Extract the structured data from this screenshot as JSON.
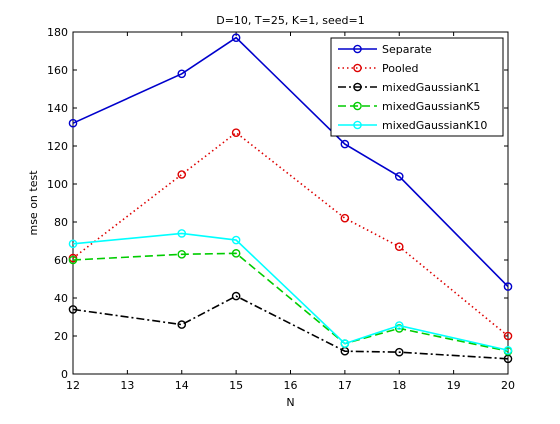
{
  "chart_data": {
    "type": "line",
    "title": "D=10, T=25, K=1, seed=1",
    "xlabel": "N",
    "ylabel": "mse on test",
    "xlim": [
      12,
      20
    ],
    "ylim": [
      0,
      180
    ],
    "xticks": [
      12,
      13,
      14,
      15,
      16,
      17,
      18,
      19,
      20
    ],
    "yticks": [
      0,
      20,
      40,
      60,
      80,
      100,
      120,
      140,
      160,
      180
    ],
    "grid": false,
    "legend_position": "top-right",
    "x": [
      12,
      14,
      15,
      17,
      18,
      20
    ],
    "series": [
      {
        "name": "Separate",
        "values": [
          132,
          158,
          177,
          121,
          104,
          46
        ],
        "color": "#0000cc",
        "line_style": "solid",
        "marker": "circle"
      },
      {
        "name": "Pooled",
        "values": [
          61,
          105,
          127,
          82,
          67,
          20
        ],
        "color": "#dd0000",
        "line_style": "dotted",
        "marker": "circle"
      },
      {
        "name": "mixedGaussianK1",
        "values": [
          34,
          26,
          41,
          12,
          11.5,
          8
        ],
        "color": "#000000",
        "line_style": "dash-dot",
        "marker": "circle"
      },
      {
        "name": "mixedGaussianK5",
        "values": [
          60,
          63,
          63.5,
          16,
          24,
          12
        ],
        "color": "#00cc00",
        "line_style": "dashed",
        "marker": "circle"
      },
      {
        "name": "mixedGaussianK10",
        "values": [
          68.5,
          74,
          70.5,
          16,
          25.5,
          12.5
        ],
        "color": "#00ffff",
        "line_style": "solid",
        "marker": "circle"
      }
    ]
  }
}
